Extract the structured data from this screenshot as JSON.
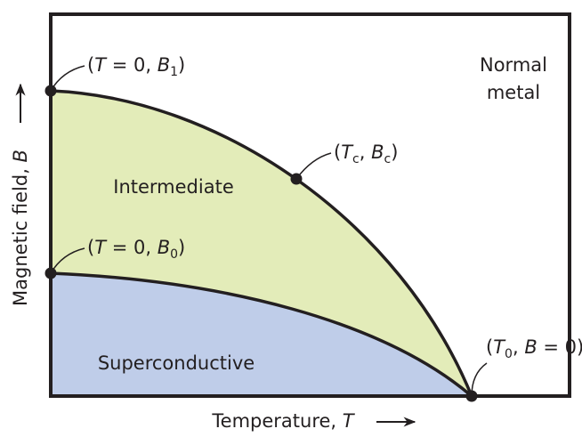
{
  "axes": {
    "y_label": [
      "Magnetic field, ",
      "B"
    ],
    "x_label": [
      "Temperature, ",
      "T"
    ]
  },
  "regions": {
    "normal": [
      "Normal",
      "metal"
    ],
    "intermediate": "Intermediate",
    "superconductive": "Superconductive"
  },
  "points": [
    {
      "label": [
        "(",
        "T",
        " = 0, ",
        "B",
        "1",
        ")"
      ]
    },
    {
      "label": [
        "(",
        "T",
        "c",
        ", ",
        "B",
        "c",
        ")"
      ]
    },
    {
      "label": [
        "(",
        "T",
        " = 0, ",
        "B",
        "0",
        ")"
      ]
    },
    {
      "label": [
        "(",
        "T",
        "0",
        ", ",
        "B",
        " = 0)"
      ]
    }
  ]
}
